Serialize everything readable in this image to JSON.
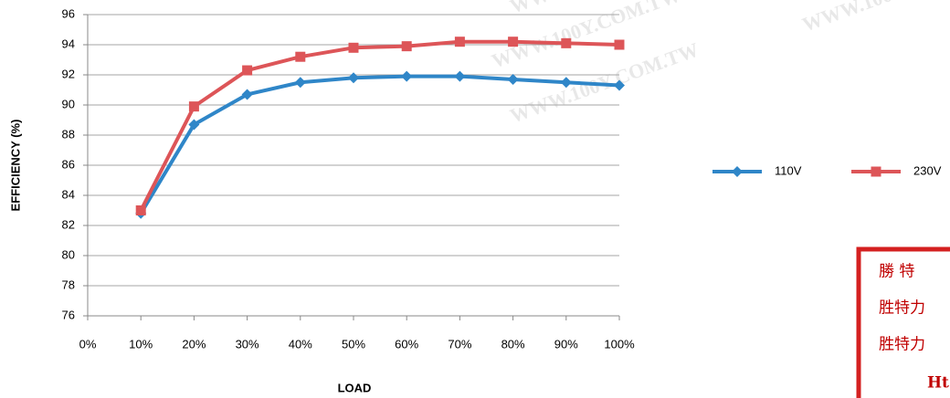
{
  "chart_data": {
    "type": "line",
    "categories": [
      "0%",
      "10%",
      "20%",
      "30%",
      "40%",
      "50%",
      "60%",
      "70%",
      "80%",
      "90%",
      "100%"
    ],
    "series": [
      {
        "name": "110V",
        "color": "#2f86c8",
        "marker": "diamond",
        "values": [
          null,
          82.8,
          88.7,
          90.7,
          91.5,
          91.8,
          91.9,
          91.9,
          91.7,
          91.5,
          91.3
        ]
      },
      {
        "name": "230V",
        "color": "#dd5558",
        "marker": "square",
        "values": [
          null,
          83.0,
          89.9,
          92.3,
          93.2,
          93.8,
          93.9,
          94.2,
          94.2,
          94.1,
          94.0
        ]
      }
    ],
    "ylim": [
      76,
      96
    ],
    "yticks": [
      76,
      78,
      80,
      82,
      84,
      86,
      88,
      90,
      92,
      94,
      96
    ],
    "grid": true,
    "legend": "right",
    "x_label": "LOAD",
    "y_label": "EFFICIENCY (%)"
  },
  "watermark": "WWW.100Y.COM.TW",
  "stamp": {
    "lines": [
      "勝 特",
      "胜特力",
      "胜特力",
      "Ht"
    ]
  }
}
